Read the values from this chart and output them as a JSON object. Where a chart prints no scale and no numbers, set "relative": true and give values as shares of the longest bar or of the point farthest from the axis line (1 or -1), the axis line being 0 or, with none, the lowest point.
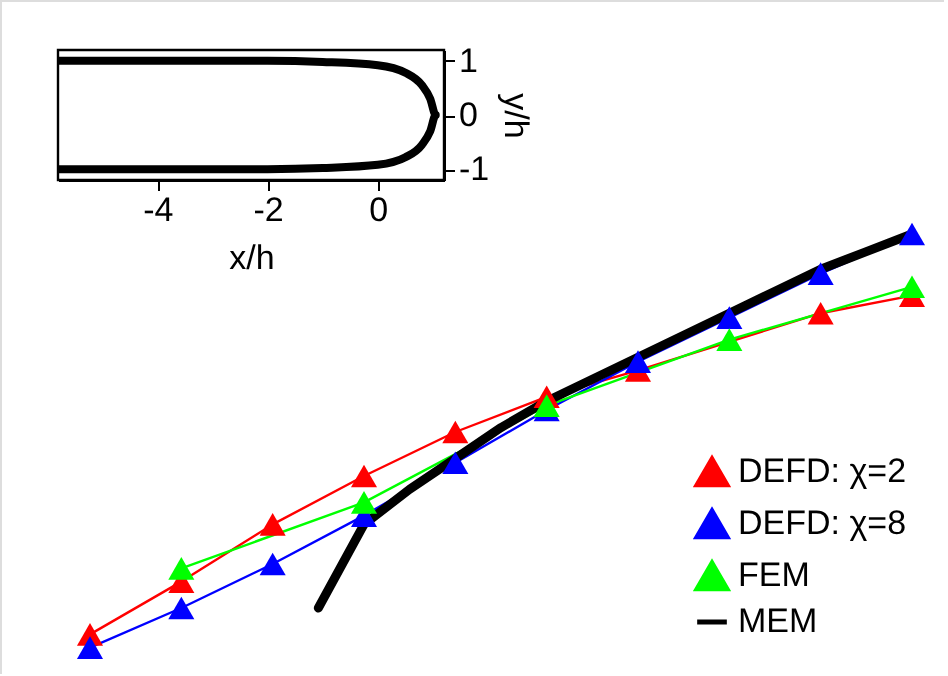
{
  "chart_data": [
    {
      "type": "line",
      "relative": true,
      "legend": "bottom right",
      "categories": [
        null,
        null,
        null,
        null,
        null,
        null,
        null,
        null,
        null,
        null,
        null,
        null,
        null,
        null,
        null,
        null,
        null,
        null,
        null
      ],
      "series": [
        {
          "name": "DEFD: χ=2",
          "color": "#ff0000",
          "marker": "triangle",
          "values": [
            0.09,
            null,
            0.21,
            null,
            0.34,
            null,
            0.45,
            null,
            0.55,
            null,
            0.63,
            null,
            0.69,
            null,
            null,
            null,
            0.82,
            null,
            0.86
          ]
        },
        {
          "name": "DEFD: χ=8",
          "color": "#0000ff",
          "marker": "triangle",
          "values": [
            0.06,
            null,
            0.15,
            null,
            0.25,
            null,
            0.36,
            null,
            0.48,
            null,
            0.6,
            null,
            0.71,
            null,
            0.81,
            null,
            0.91,
            null,
            1.0
          ]
        },
        {
          "name": "FEM",
          "color": "#00ff00",
          "marker": "triangle",
          "values": [
            null,
            null,
            0.24,
            null,
            null,
            null,
            0.39,
            null,
            null,
            null,
            0.61,
            null,
            null,
            null,
            0.76,
            null,
            null,
            null,
            0.88
          ]
        },
        {
          "name": "MEM",
          "color": "#000000",
          "marker": "none",
          "values": [
            null,
            null,
            null,
            null,
            null,
            0.15,
            0.34,
            0.42,
            0.49,
            0.56,
            0.62,
            0.67,
            0.72,
            0.77,
            0.82,
            0.87,
            0.92,
            0.96,
            1.0
          ]
        }
      ]
    },
    {
      "type": "line",
      "xlabel": "x/h",
      "ylabel": "y/h",
      "color": "#000000",
      "x": [
        -5.8,
        -4,
        -2,
        -1,
        0,
        0.5,
        0.8,
        0.95,
        1.05,
        0.95,
        0.8,
        0.5,
        0,
        -1,
        -2,
        -4,
        -5.8
      ],
      "values": [
        1,
        1,
        1,
        0.98,
        0.92,
        0.78,
        0.55,
        0.3,
        0,
        -0.3,
        -0.55,
        -0.78,
        -0.92,
        -0.98,
        -1,
        -1,
        -1
      ],
      "xlim": [
        -5.8,
        1.2
      ],
      "ylim": [
        -1.2,
        1.2
      ],
      "xticks": [
        -4,
        -2,
        0
      ],
      "yticks": [
        -1,
        0,
        1
      ]
    }
  ]
}
